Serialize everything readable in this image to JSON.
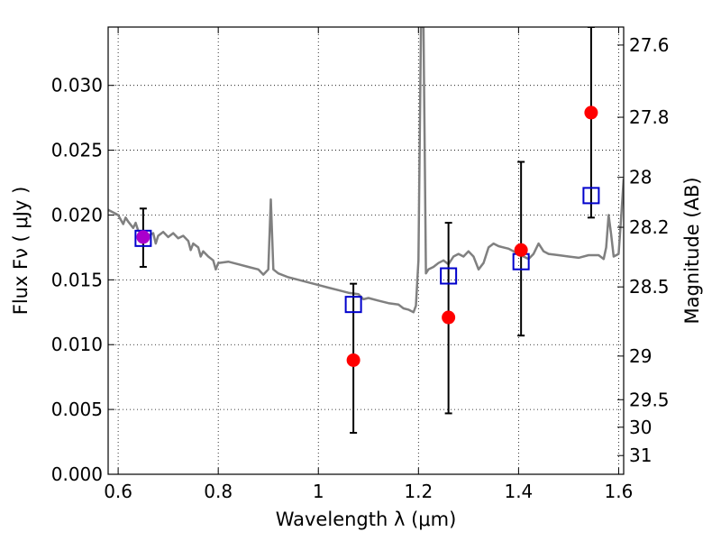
{
  "chart_data": {
    "type": "scatter",
    "xlabel": "Wavelength  λ (μm)",
    "ylabel": "Flux  Fν  ( μJy )",
    "y2label": "Magnitude (AB)",
    "xlim": [
      0.58,
      1.61
    ],
    "ylim": [
      0.0,
      0.0345
    ],
    "grid": true,
    "x_ticks": [
      {
        "v": 0.6,
        "label": "0.6"
      },
      {
        "v": 0.8,
        "label": "0.8"
      },
      {
        "v": 1.0,
        "label": "1"
      },
      {
        "v": 1.2,
        "label": "1.2"
      },
      {
        "v": 1.4,
        "label": "1.4"
      },
      {
        "v": 1.6,
        "label": "1.6"
      }
    ],
    "y_ticks": [
      {
        "v": 0.0,
        "label": "0.000"
      },
      {
        "v": 0.005,
        "label": "0.005"
      },
      {
        "v": 0.01,
        "label": "0.010"
      },
      {
        "v": 0.015,
        "label": "0.015"
      },
      {
        "v": 0.02,
        "label": "0.020"
      },
      {
        "v": 0.025,
        "label": "0.025"
      },
      {
        "v": 0.03,
        "label": "0.030"
      }
    ],
    "y2_ticks": [
      {
        "v": 27.6,
        "label": "27.6"
      },
      {
        "v": 27.8,
        "label": "27.8"
      },
      {
        "v": 28.0,
        "label": "28"
      },
      {
        "v": 28.2,
        "label": "28.2"
      },
      {
        "v": 28.5,
        "label": "28.5"
      },
      {
        "v": 29.0,
        "label": "29"
      },
      {
        "v": 29.5,
        "label": "29.5"
      },
      {
        "v": 30.0,
        "label": "30"
      },
      {
        "v": 31.0,
        "label": "31"
      }
    ],
    "series": [
      {
        "kind": "line",
        "color": "#808080",
        "points": [
          [
            0.58,
            0.0204
          ],
          [
            0.59,
            0.0202
          ],
          [
            0.6,
            0.02
          ],
          [
            0.61,
            0.0193
          ],
          [
            0.615,
            0.0198
          ],
          [
            0.62,
            0.0195
          ],
          [
            0.63,
            0.019
          ],
          [
            0.635,
            0.0194
          ],
          [
            0.64,
            0.0188
          ],
          [
            0.65,
            0.0185
          ],
          [
            0.655,
            0.0182
          ],
          [
            0.66,
            0.0184
          ],
          [
            0.67,
            0.0186
          ],
          [
            0.675,
            0.0178
          ],
          [
            0.68,
            0.0184
          ],
          [
            0.69,
            0.0187
          ],
          [
            0.7,
            0.0183
          ],
          [
            0.71,
            0.0186
          ],
          [
            0.72,
            0.0182
          ],
          [
            0.73,
            0.0184
          ],
          [
            0.74,
            0.018
          ],
          [
            0.745,
            0.0173
          ],
          [
            0.75,
            0.0178
          ],
          [
            0.76,
            0.0175
          ],
          [
            0.765,
            0.0168
          ],
          [
            0.77,
            0.0172
          ],
          [
            0.78,
            0.0168
          ],
          [
            0.79,
            0.0165
          ],
          [
            0.795,
            0.0158
          ],
          [
            0.8,
            0.0163
          ],
          [
            0.82,
            0.0164
          ],
          [
            0.84,
            0.0162
          ],
          [
            0.86,
            0.016
          ],
          [
            0.88,
            0.0158
          ],
          [
            0.89,
            0.0154
          ],
          [
            0.9,
            0.0158
          ],
          [
            0.905,
            0.0212
          ],
          [
            0.91,
            0.0158
          ],
          [
            0.92,
            0.0155
          ],
          [
            0.94,
            0.0152
          ],
          [
            0.96,
            0.015
          ],
          [
            0.98,
            0.0148
          ],
          [
            1.0,
            0.0146
          ],
          [
            1.02,
            0.0144
          ],
          [
            1.04,
            0.0142
          ],
          [
            1.06,
            0.014
          ],
          [
            1.08,
            0.0139
          ],
          [
            1.09,
            0.0135
          ],
          [
            1.1,
            0.0136
          ],
          [
            1.12,
            0.0134
          ],
          [
            1.14,
            0.0132
          ],
          [
            1.16,
            0.0131
          ],
          [
            1.17,
            0.0128
          ],
          [
            1.18,
            0.0127
          ],
          [
            1.19,
            0.0125
          ],
          [
            1.195,
            0.013
          ],
          [
            1.2,
            0.0165
          ],
          [
            1.205,
            0.0345
          ],
          [
            1.21,
            0.0345
          ],
          [
            1.215,
            0.0155
          ],
          [
            1.22,
            0.0158
          ],
          [
            1.23,
            0.016
          ],
          [
            1.24,
            0.0163
          ],
          [
            1.25,
            0.0165
          ],
          [
            1.26,
            0.0162
          ],
          [
            1.27,
            0.0168
          ],
          [
            1.28,
            0.017
          ],
          [
            1.29,
            0.0168
          ],
          [
            1.3,
            0.0172
          ],
          [
            1.31,
            0.0168
          ],
          [
            1.32,
            0.0158
          ],
          [
            1.33,
            0.0163
          ],
          [
            1.34,
            0.0175
          ],
          [
            1.35,
            0.0178
          ],
          [
            1.36,
            0.0176
          ],
          [
            1.37,
            0.0175
          ],
          [
            1.38,
            0.0174
          ],
          [
            1.39,
            0.0172
          ],
          [
            1.4,
            0.017
          ],
          [
            1.41,
            0.0168
          ],
          [
            1.42,
            0.0166
          ],
          [
            1.43,
            0.017
          ],
          [
            1.44,
            0.0178
          ],
          [
            1.45,
            0.0172
          ],
          [
            1.46,
            0.017
          ],
          [
            1.48,
            0.0169
          ],
          [
            1.5,
            0.0168
          ],
          [
            1.52,
            0.0167
          ],
          [
            1.54,
            0.0169
          ],
          [
            1.56,
            0.0169
          ],
          [
            1.57,
            0.0166
          ],
          [
            1.575,
            0.0175
          ],
          [
            1.58,
            0.02
          ],
          [
            1.585,
            0.0185
          ],
          [
            1.59,
            0.0168
          ],
          [
            1.6,
            0.017
          ],
          [
            1.605,
            0.0198
          ],
          [
            1.61,
            0.0228
          ]
        ]
      },
      {
        "kind": "errorbar",
        "color": "#000000",
        "bars": [
          {
            "x": 0.65,
            "low": 0.016,
            "high": 0.0205
          },
          {
            "x": 1.07,
            "low": 0.0032,
            "high": 0.0147
          },
          {
            "x": 1.26,
            "low": 0.0047,
            "high": 0.0194
          },
          {
            "x": 1.405,
            "low": 0.0107,
            "high": 0.0241
          },
          {
            "x": 1.545,
            "low": 0.0198,
            "high": 0.0345
          }
        ]
      },
      {
        "kind": "square",
        "color": "#0000cc",
        "points": [
          [
            0.65,
            0.0182
          ],
          [
            1.07,
            0.0131
          ],
          [
            1.26,
            0.0153
          ],
          [
            1.405,
            0.0164
          ],
          [
            1.545,
            0.0215
          ]
        ]
      },
      {
        "kind": "circle",
        "color": "#ff0000",
        "points": [
          [
            1.07,
            0.0088
          ],
          [
            1.26,
            0.0121
          ],
          [
            1.405,
            0.0173
          ],
          [
            1.545,
            0.0279
          ]
        ]
      },
      {
        "kind": "circle",
        "color": "#aa00cc",
        "points": [
          [
            0.65,
            0.0183
          ]
        ]
      }
    ]
  }
}
